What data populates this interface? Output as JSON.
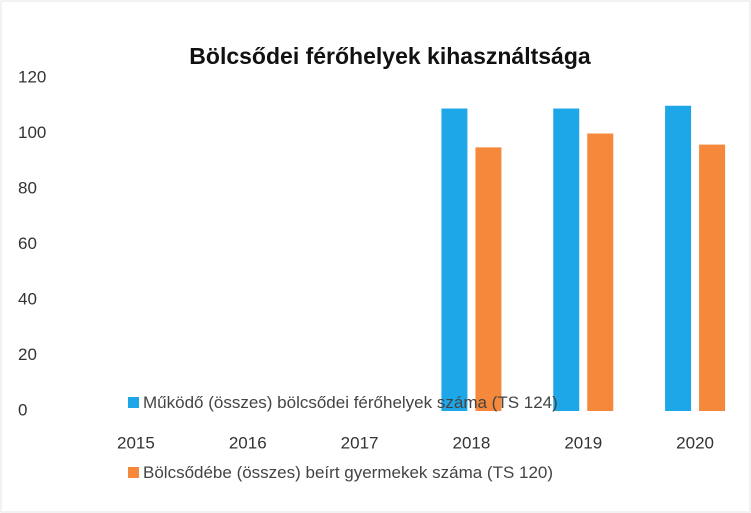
{
  "chart_data": {
    "type": "bar",
    "title": "Bölcsődei férőhelyek kihasználtsága",
    "categories": [
      "2015",
      "2016",
      "2017",
      "2018",
      "2019",
      "2020"
    ],
    "series": [
      {
        "name": "Működő (összes) bölcsődei férőhelyek száma (TS 124)",
        "color": "#1ea7e8",
        "values": [
          null,
          null,
          null,
          109,
          109,
          110
        ]
      },
      {
        "name": "Bölcsődébe (összes) beírt gyermekek száma (TS 120)",
        "color": "#f5883a",
        "values": [
          null,
          null,
          null,
          95,
          100,
          96
        ]
      }
    ],
    "ylim": [
      0,
      120
    ],
    "yticks": [
      0,
      20,
      40,
      60,
      80,
      100,
      120
    ],
    "grid": false
  }
}
